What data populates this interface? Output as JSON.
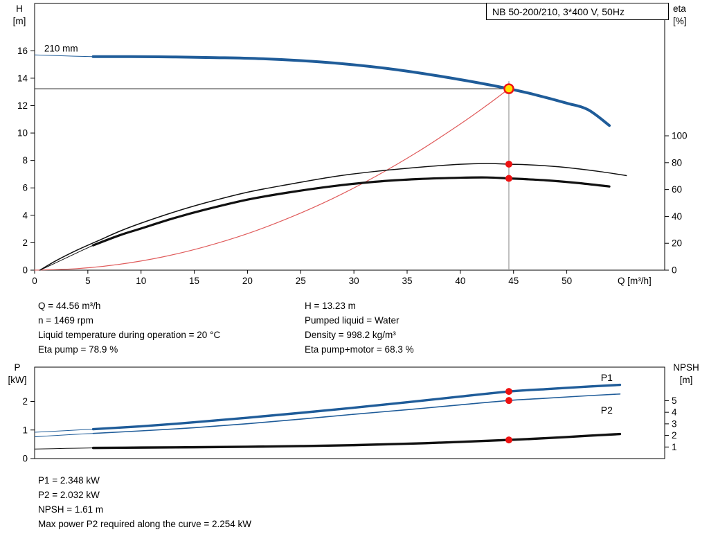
{
  "header": {
    "title_box": "NB 50-200/210, 3*400 V, 50Hz"
  },
  "axis_titles": {
    "h_symbol": "H",
    "h_unit": "[m]",
    "eta_symbol": "eta",
    "eta_unit": "[%]",
    "q": "Q [m³/h]",
    "p_symbol": "P",
    "p_unit": "[kW]",
    "npsh_symbol": "NPSH",
    "npsh_unit": "[m]"
  },
  "duty_info": {
    "left": [
      "Q = 44.56 m³/h",
      "n = 1469 rpm",
      "Liquid temperature during operation = 20 °C",
      "Eta pump = 78.9 %"
    ],
    "right": [
      "H = 13.23 m",
      "Pumped liquid = Water",
      "Density = 998.2 kg/m³",
      "Eta pump+motor = 68.3 %"
    ]
  },
  "power_info": [
    "P1 = 2.348 kW",
    "P2 = 2.032 kW",
    "NPSH = 1.61 m",
    "Max power P2 required along the curve = 2.254 kW"
  ],
  "colors": {
    "curve_blue": "#1f5c99",
    "curve_black": "#111111",
    "system_red": "#e05c5c",
    "marker_red": "#ee1111",
    "duty_yellow": "#ffe100",
    "ref_gray": "#999999"
  },
  "chart_data": [
    {
      "id": "top",
      "type": "line",
      "title": "NB 50-200/210, 3*400 V, 50Hz",
      "xlabel": "Q [m³/h]",
      "x_range": [
        0,
        59.2
      ],
      "x_ticks": [
        0,
        5,
        10,
        15,
        20,
        25,
        30,
        35,
        40,
        45,
        50
      ],
      "show_x_labels": true,
      "y_left": {
        "label": "H [m]",
        "range": [
          0,
          19.45
        ],
        "ticks": [
          0,
          2,
          4,
          6,
          8,
          10,
          12,
          14,
          16
        ]
      },
      "y_right": {
        "label": "eta [%]",
        "range": [
          0,
          198.5
        ],
        "ticks": [
          0,
          20,
          40,
          60,
          80,
          100
        ]
      },
      "ref_lines": [
        {
          "type": "h",
          "axis": "left",
          "value": 13.23,
          "from_x": 0,
          "to_x": 44.56,
          "color": "#1a1a1a",
          "width": 1
        },
        {
          "type": "v",
          "axis": "left",
          "x": 44.56,
          "from": 0,
          "to": 13.78,
          "color": "#999999",
          "width": 1.2
        }
      ],
      "series": [
        {
          "name": "System curve",
          "axis": "left",
          "color": "#e05c5c",
          "width": 1.2,
          "points": [
            [
              0,
              0
            ],
            [
              4,
              0.11
            ],
            [
              8,
              0.43
            ],
            [
              12,
              0.96
            ],
            [
              16,
              1.71
            ],
            [
              20,
              2.66
            ],
            [
              24,
              3.84
            ],
            [
              28,
              5.22
            ],
            [
              32,
              6.82
            ],
            [
              36,
              8.63
            ],
            [
              40,
              10.66
            ],
            [
              42.5,
              12.03
            ],
            [
              44.56,
              13.23
            ]
          ]
        },
        {
          "name": "Eta pump plus motor",
          "axis": "right",
          "color": "#111111",
          "width": 3.2,
          "lead_until": 5.5,
          "points": [
            [
              0.5,
              0
            ],
            [
              2,
              5.5
            ],
            [
              4,
              13
            ],
            [
              5.5,
              18.5
            ],
            [
              8,
              26
            ],
            [
              10,
              31
            ],
            [
              13,
              38.5
            ],
            [
              16,
              45
            ],
            [
              20,
              52.5
            ],
            [
              24,
              58
            ],
            [
              28,
              62.5
            ],
            [
              32,
              65.8
            ],
            [
              36,
              67.8
            ],
            [
              40,
              68.8
            ],
            [
              42.5,
              69
            ],
            [
              44.56,
              68.3
            ],
            [
              48,
              66.9
            ],
            [
              51,
              64.9
            ],
            [
              54,
              62.3
            ]
          ]
        },
        {
          "name": "Eta pump",
          "axis": "right",
          "color": "#111111",
          "width": 1.5,
          "points": [
            [
              0.5,
              0
            ],
            [
              2,
              7
            ],
            [
              4,
              15
            ],
            [
              6,
              22
            ],
            [
              8,
              29
            ],
            [
              10,
              35
            ],
            [
              13,
              43
            ],
            [
              16,
              50
            ],
            [
              20,
              58
            ],
            [
              24,
              64
            ],
            [
              28,
              69.5
            ],
            [
              32,
              73.5
            ],
            [
              36,
              76.5
            ],
            [
              40,
              78.8
            ],
            [
              42.5,
              79.4
            ],
            [
              44.56,
              78.9
            ],
            [
              47,
              78.2
            ],
            [
              50,
              76.4
            ],
            [
              53,
              73.5
            ],
            [
              55.6,
              70.4
            ]
          ]
        },
        {
          "name": "Head 210 mm",
          "axis": "left",
          "color": "#1f5c99",
          "width": 4,
          "lead_until": 5.5,
          "points": [
            [
              0,
              15.7
            ],
            [
              3,
              15.62
            ],
            [
              5.5,
              15.57
            ],
            [
              9,
              15.57
            ],
            [
              13,
              15.55
            ],
            [
              17,
              15.5
            ],
            [
              21,
              15.43
            ],
            [
              25,
              15.28
            ],
            [
              29,
              15.05
            ],
            [
              33,
              14.72
            ],
            [
              37,
              14.28
            ],
            [
              41,
              13.76
            ],
            [
              44.56,
              13.23
            ],
            [
              47,
              12.8
            ],
            [
              50,
              12.18
            ],
            [
              52,
              11.7
            ],
            [
              54,
              10.55
            ]
          ]
        }
      ],
      "markers": [
        {
          "name": "duty-point",
          "x": 44.56,
          "value": 13.23,
          "axis": "left",
          "style": "duty"
        },
        {
          "name": "eta-pump-point",
          "x": 44.56,
          "value": 78.9,
          "axis": "right",
          "style": "dot"
        },
        {
          "name": "eta-pump-motor-point",
          "x": 44.56,
          "value": 68.3,
          "axis": "right",
          "style": "dot"
        }
      ],
      "annotations": [
        {
          "text": "210 mm",
          "x": 0.9,
          "value": 15.95,
          "axis": "left",
          "color": "#000000",
          "size": 13.5
        }
      ]
    },
    {
      "id": "bottom",
      "type": "line",
      "x_range": [
        0,
        59.2
      ],
      "x_ticks": [],
      "show_x_labels": false,
      "y_left": {
        "label": "P [kW]",
        "range": [
          0,
          3.2
        ],
        "ticks": [
          0,
          1,
          2
        ]
      },
      "y_right": {
        "label": "NPSH [m]",
        "range": [
          0,
          7.9
        ],
        "ticks": [
          1,
          2,
          3,
          4,
          5
        ]
      },
      "ref_lines": [],
      "series": [
        {
          "name": "NPSH",
          "axis": "right",
          "color": "#111111",
          "width": 3.4,
          "lead_until": 5.5,
          "points": [
            [
              0,
              0.82
            ],
            [
              3,
              0.88
            ],
            [
              5.5,
              0.92
            ],
            [
              10,
              0.95
            ],
            [
              15,
              0.98
            ],
            [
              20,
              1.02
            ],
            [
              25,
              1.08
            ],
            [
              30,
              1.16
            ],
            [
              35,
              1.28
            ],
            [
              40,
              1.44
            ],
            [
              44.56,
              1.61
            ],
            [
              48,
              1.76
            ],
            [
              52,
              1.97
            ],
            [
              55,
              2.12
            ]
          ]
        },
        {
          "name": "P2",
          "axis": "left",
          "color": "#1f5c99",
          "width": 1.6,
          "lead_until": 5.5,
          "points": [
            [
              0,
              0.76
            ],
            [
              3,
              0.83
            ],
            [
              5.5,
              0.88
            ],
            [
              10,
              0.97
            ],
            [
              15,
              1.08
            ],
            [
              20,
              1.22
            ],
            [
              25,
              1.38
            ],
            [
              30,
              1.55
            ],
            [
              35,
              1.71
            ],
            [
              40,
              1.88
            ],
            [
              44.56,
              2.032
            ],
            [
              48,
              2.11
            ],
            [
              52,
              2.2
            ],
            [
              55,
              2.26
            ]
          ]
        },
        {
          "name": "P1",
          "axis": "left",
          "color": "#1f5c99",
          "width": 3.4,
          "lead_until": 5.5,
          "points": [
            [
              0,
              0.92
            ],
            [
              3,
              0.98
            ],
            [
              5.5,
              1.03
            ],
            [
              10,
              1.13
            ],
            [
              15,
              1.27
            ],
            [
              20,
              1.43
            ],
            [
              25,
              1.6
            ],
            [
              30,
              1.78
            ],
            [
              35,
              1.97
            ],
            [
              40,
              2.17
            ],
            [
              44.56,
              2.348
            ],
            [
              48,
              2.43
            ],
            [
              52,
              2.52
            ],
            [
              55,
              2.58
            ]
          ]
        }
      ],
      "markers": [
        {
          "name": "p1-point",
          "x": 44.56,
          "value": 2.348,
          "axis": "left",
          "style": "dot"
        },
        {
          "name": "p2-point",
          "x": 44.56,
          "value": 2.032,
          "axis": "left",
          "style": "dot"
        },
        {
          "name": "npsh-point",
          "x": 44.56,
          "value": 1.61,
          "axis": "right",
          "style": "dot"
        }
      ],
      "annotations": [
        {
          "text": "P1",
          "x": 53.2,
          "value": 2.72,
          "axis": "left",
          "color": "#1f5c99",
          "size": 14
        },
        {
          "text": "P2",
          "x": 53.2,
          "value": 1.58,
          "axis": "left",
          "color": "#1f5c99",
          "size": 14
        }
      ]
    }
  ]
}
